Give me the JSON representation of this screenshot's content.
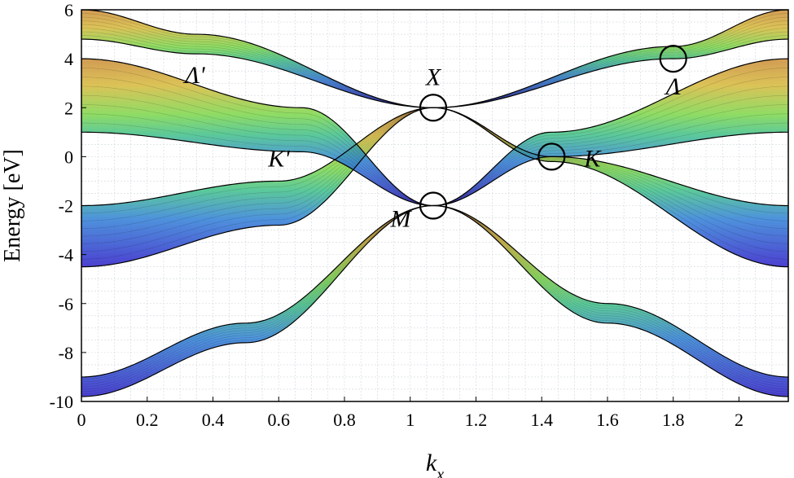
{
  "chart_data": {
    "type": "line",
    "title": "",
    "xlabel": "k_x",
    "ylabel": "Energy [eV]",
    "xlim": [
      0,
      2.15
    ],
    "ylim": [
      -10,
      6
    ],
    "x_ticks": [
      0,
      0.2,
      0.4,
      0.6,
      0.8,
      1,
      1.2,
      1.4,
      1.6,
      1.8,
      2
    ],
    "x_tick_labels": [
      "0",
      "0.2",
      "0.4",
      "0.6",
      "0.8",
      "1",
      "1.2",
      "1.4",
      "1.6",
      "1.8",
      "2"
    ],
    "y_ticks": [
      -10,
      -8,
      -6,
      -4,
      -2,
      0,
      2,
      4,
      6
    ],
    "y_tick_labels": [
      "-10",
      "-8",
      "-6",
      "-4",
      "-2",
      "0",
      "2",
      "4",
      "6"
    ],
    "grid": true,
    "colormap": [
      "#2c1fc8",
      "#2f7fd6",
      "#3fbf8a",
      "#7bd64a",
      "#d6b83a",
      "#c98a36"
    ],
    "line_color": "#000000",
    "series": [
      {
        "x": [
          0,
          0.5,
          1.07,
          1.6,
          2.15
        ],
        "y": [
          -9.0,
          -6.8,
          -2.0,
          -6.0,
          -9.0
        ]
      },
      {
        "x": [
          0,
          0.5,
          1.07,
          1.6,
          2.15
        ],
        "y": [
          -9.8,
          -7.6,
          -2.0,
          -6.8,
          -9.8
        ]
      },
      {
        "x": [
          0,
          0.6,
          1.07,
          1.43,
          2.15
        ],
        "y": [
          -2.0,
          -1.0,
          2.0,
          0.0,
          -2.0
        ]
      },
      {
        "x": [
          0,
          0.6,
          1.07,
          1.43,
          2.15
        ],
        "y": [
          -4.5,
          -2.8,
          2.0,
          -0.2,
          -4.5
        ]
      },
      {
        "x": [
          0,
          0.67,
          1.07,
          1.43,
          2.15
        ],
        "y": [
          1.0,
          0.2,
          -2.0,
          0.0,
          1.0
        ]
      },
      {
        "x": [
          0,
          0.67,
          1.07,
          1.43,
          2.15
        ],
        "y": [
          4.0,
          2.0,
          -2.0,
          1.0,
          4.0
        ]
      },
      {
        "x": [
          0,
          0.35,
          1.07,
          1.8,
          2.15
        ],
        "y": [
          4.8,
          4.2,
          2.0,
          4.0,
          4.8
        ]
      },
      {
        "x": [
          0,
          0.35,
          1.07,
          1.8,
          2.15
        ],
        "y": [
          6.0,
          5.0,
          2.0,
          4.5,
          6.0
        ]
      }
    ],
    "annotations": [
      {
        "label": "Λ'",
        "x": 0.35,
        "y": 4.0
      },
      {
        "label": "X",
        "x": 1.07,
        "y": 2.0
      },
      {
        "label": "Λ",
        "x": 1.8,
        "y": 4.0
      },
      {
        "label": "K'",
        "x": 0.67,
        "y": 0.0
      },
      {
        "label": "K",
        "x": 1.43,
        "y": 0.0
      },
      {
        "label": "M",
        "x": 1.07,
        "y": -2.0
      }
    ],
    "circles": [
      {
        "x": 1.07,
        "y": 2.0
      },
      {
        "x": 1.8,
        "y": 4.0
      },
      {
        "x": 1.43,
        "y": 0.0
      },
      {
        "x": 1.07,
        "y": -2.0
      }
    ]
  }
}
